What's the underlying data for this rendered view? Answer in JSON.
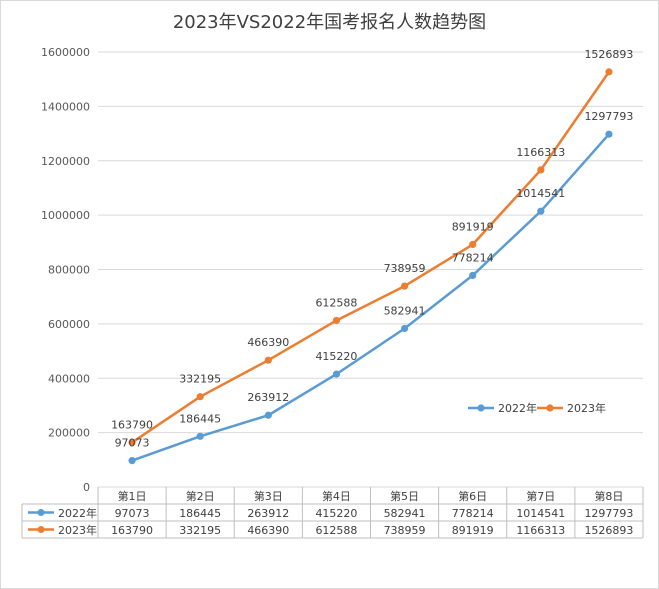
{
  "chart_data": {
    "type": "line",
    "title": "2023年VS2022年国考报名人数趋势图",
    "categories": [
      "第1日",
      "第2日",
      "第3日",
      "第4日",
      "第5日",
      "第6日",
      "第7日",
      "第8日"
    ],
    "series": [
      {
        "name": "2022年",
        "color": "#5b9bd5",
        "values": [
          97073,
          186445,
          263912,
          415220,
          582941,
          778214,
          1014541,
          1297793
        ],
        "labels": [
          "97073",
          "186445",
          "263912",
          "415220",
          "582941",
          "778214",
          "1014541",
          "1297793"
        ]
      },
      {
        "name": "2023年",
        "color": "#ed7d31",
        "values": [
          163790,
          332195,
          466390,
          612588,
          738959,
          891919,
          1166313,
          1526893
        ],
        "labels": [
          "163790",
          "332195",
          "466390",
          "612588",
          "738959",
          "891919",
          "1166313",
          "1526893"
        ]
      }
    ],
    "ylim": [
      0,
      1600000
    ],
    "yticks": [
      0,
      200000,
      400000,
      600000,
      800000,
      1000000,
      1200000,
      1400000,
      1600000
    ],
    "ytick_labels": [
      "0",
      "200000",
      "400000",
      "600000",
      "800000",
      "1000000",
      "1200000",
      "1400000",
      "1600000"
    ],
    "grid": true,
    "legend_position": "inside-right",
    "data_table": true
  }
}
